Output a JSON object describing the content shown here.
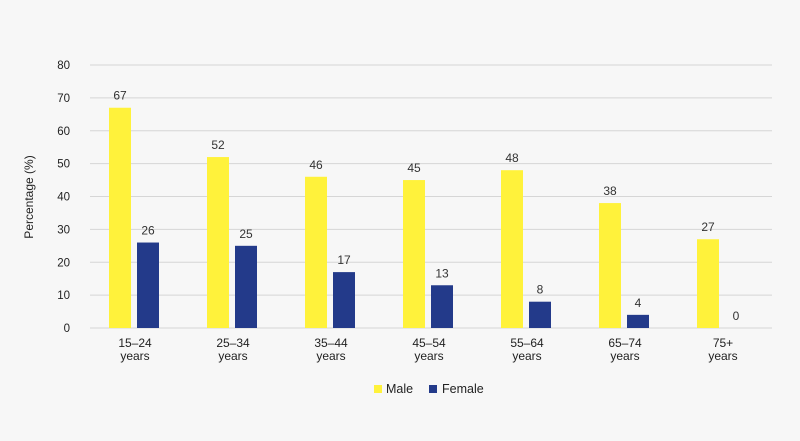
{
  "chart_data": {
    "type": "bar",
    "categories": [
      [
        "15–24",
        "years"
      ],
      [
        "25–34",
        "years"
      ],
      [
        "35–44",
        "years"
      ],
      [
        "45–54",
        "years"
      ],
      [
        "55–64",
        "years"
      ],
      [
        "65–74",
        "years"
      ],
      [
        "75+",
        "years"
      ]
    ],
    "series": [
      {
        "name": "Male",
        "color": "#fff23b",
        "values": [
          67,
          52,
          46,
          45,
          48,
          38,
          27
        ]
      },
      {
        "name": "Female",
        "color": "#233a8a",
        "values": [
          26,
          25,
          17,
          13,
          8,
          4,
          0
        ]
      }
    ],
    "ylabel": "Percentage (%)",
    "ylim": [
      0,
      80
    ],
    "yticks": [
      0,
      10,
      20,
      30,
      40,
      50,
      60,
      70,
      80
    ],
    "grid": true,
    "legend_position": "bottom-center",
    "data_labels": true
  }
}
